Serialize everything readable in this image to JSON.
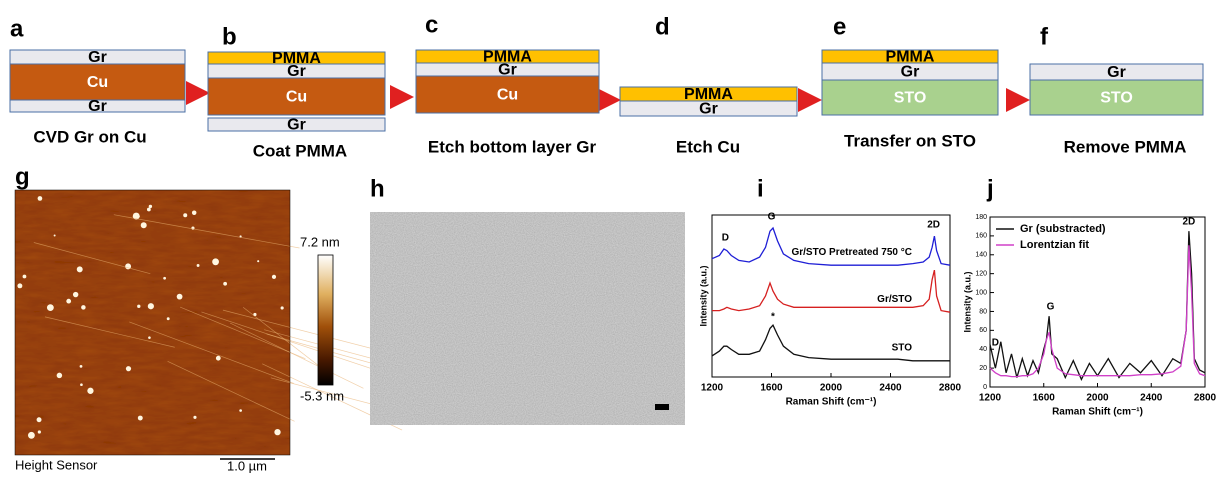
{
  "steps": [
    {
      "letter": "a",
      "caption": "CVD Gr on Cu",
      "layers": [
        {
          "label": "Gr",
          "color": "#e9e9ee"
        },
        {
          "label": "Cu",
          "color": "#c55a11"
        },
        {
          "label": "Gr",
          "color": "#e9e9ee"
        }
      ]
    },
    {
      "letter": "b",
      "caption": "Coat PMMA",
      "layers": [
        {
          "label": "PMMA",
          "color": "#ffc000"
        },
        {
          "label": "Gr",
          "color": "#e9e9ee"
        },
        {
          "label": "Cu",
          "color": "#c55a11"
        },
        {
          "label": "Gr",
          "color": "#e9e9ee"
        }
      ]
    },
    {
      "letter": "c",
      "caption": "Etch bottom layer Gr",
      "layers": [
        {
          "label": "PMMA",
          "color": "#ffc000"
        },
        {
          "label": "Gr",
          "color": "#e9e9ee"
        },
        {
          "label": "Cu",
          "color": "#c55a11"
        }
      ]
    },
    {
      "letter": "d",
      "caption": "Etch Cu",
      "layers": [
        {
          "label": "PMMA",
          "color": "#ffc000"
        },
        {
          "label": "Gr",
          "color": "#e9e9ee"
        }
      ]
    },
    {
      "letter": "e",
      "caption": "Transfer on STO",
      "layers": [
        {
          "label": "PMMA",
          "color": "#ffc000"
        },
        {
          "label": "Gr",
          "color": "#e9e9ee"
        },
        {
          "label": "STO",
          "color": "#a9d18e"
        }
      ]
    },
    {
      "letter": "f",
      "caption": "Remove PMMA",
      "layers": [
        {
          "label": "Gr",
          "color": "#e9e9ee"
        },
        {
          "label": "STO",
          "color": "#a9d18e"
        }
      ]
    }
  ],
  "panels": {
    "g": {
      "letter": "g",
      "colorbar_max": "7.2 nm",
      "colorbar_min": "-5.3 nm",
      "channel": "Height Sensor",
      "scale_bar": "1.0 µm"
    },
    "h": {
      "letter": "h"
    }
  },
  "chart_data": [
    {
      "type": "line",
      "letter": "i",
      "xlabel": "Raman Shift (cm⁻¹)",
      "ylabel": "Intensity (a.u.)",
      "x": [
        1200,
        1250,
        1280,
        1300,
        1330,
        1380,
        1450,
        1520,
        1560,
        1590,
        1610,
        1640,
        1680,
        1750,
        1850,
        2000,
        2150,
        2300,
        2450,
        2550,
        2620,
        2660,
        2680,
        2695,
        2710,
        2740,
        2800
      ],
      "series": [
        {
          "name": "Gr/STO Pretreated 750 °C",
          "color": "#1f1fd6",
          "values": [
            7.3,
            7.5,
            7.9,
            7.8,
            7.5,
            7.2,
            7.1,
            7.4,
            8.0,
            9.0,
            9.2,
            8.4,
            7.6,
            7.2,
            7.0,
            6.9,
            6.9,
            6.9,
            6.9,
            7.0,
            7.1,
            7.4,
            8.0,
            8.7,
            7.8,
            7.0,
            6.9
          ]
        },
        {
          "name": "Gr/STO",
          "color": "#d62020",
          "values": [
            4.1,
            4.1,
            4.2,
            4.3,
            4.2,
            4.1,
            4.2,
            4.4,
            5.0,
            5.8,
            5.3,
            4.8,
            4.5,
            4.3,
            4.3,
            4.3,
            4.3,
            4.3,
            4.3,
            4.3,
            4.4,
            4.8,
            6.0,
            6.6,
            5.0,
            4.1,
            4.0
          ]
        },
        {
          "name": "STO",
          "color": "#111111",
          "values": [
            1.3,
            1.6,
            1.9,
            1.9,
            1.7,
            1.4,
            1.4,
            1.6,
            2.3,
            3.0,
            3.2,
            2.6,
            1.9,
            1.4,
            1.2,
            1.1,
            1.1,
            1.1,
            1.1,
            1.0,
            1.0,
            1.0,
            1.0,
            1.0,
            1.0,
            1.0,
            1.0
          ]
        }
      ],
      "annotations": [
        {
          "text": "D",
          "x": 1290,
          "y": 8.6
        },
        {
          "text": "G",
          "x": 1600,
          "y": 9.9
        },
        {
          "text": "2D",
          "x": 2690,
          "y": 9.4
        },
        {
          "text": "*",
          "x": 1610,
          "y": 3.7
        }
      ],
      "xlim": [
        1200,
        2800
      ],
      "xticks": [
        1200,
        1600,
        2000,
        2400,
        2800
      ],
      "ylim": [
        0,
        10
      ],
      "legend": "none"
    },
    {
      "type": "line",
      "letter": "j",
      "xlabel": "Raman Shift (cm⁻¹)",
      "ylabel": "Intensity (a.u.)",
      "x": [
        1200,
        1240,
        1280,
        1320,
        1360,
        1400,
        1440,
        1480,
        1520,
        1560,
        1600,
        1620,
        1640,
        1660,
        1700,
        1760,
        1820,
        1880,
        1940,
        2000,
        2080,
        2160,
        2240,
        2320,
        2400,
        2480,
        2560,
        2620,
        2660,
        2680,
        2700,
        2720,
        2760,
        2800
      ],
      "series": [
        {
          "name": "Gr (substracted)",
          "color": "#111111",
          "values": [
            45,
            20,
            48,
            15,
            35,
            10,
            30,
            12,
            28,
            15,
            40,
            50,
            75,
            35,
            30,
            10,
            28,
            8,
            25,
            12,
            30,
            10,
            25,
            15,
            28,
            12,
            30,
            25,
            60,
            165,
            120,
            30,
            18,
            15
          ]
        },
        {
          "name": "Lorentzian fit",
          "color": "#d040c8",
          "values": [
            20,
            15,
            12,
            12,
            11,
            11,
            12,
            12,
            14,
            20,
            35,
            50,
            58,
            40,
            20,
            14,
            13,
            12,
            12,
            12,
            12,
            12,
            12,
            13,
            13,
            14,
            16,
            22,
            60,
            150,
            100,
            25,
            14,
            12
          ]
        }
      ],
      "annotations": [
        {
          "text": "D",
          "x": 1240,
          "y": 47
        },
        {
          "text": "G",
          "x": 1650,
          "y": 85
        },
        {
          "text": "2D",
          "x": 2680,
          "y": 175
        }
      ],
      "xlim": [
        1200,
        2800
      ],
      "xticks": [
        1200,
        1600,
        2000,
        2400,
        2800
      ],
      "ylim": [
        0,
        180
      ],
      "yticks": [
        0,
        20,
        40,
        60,
        80,
        100,
        120,
        140,
        160,
        180
      ],
      "legend": "upper left"
    }
  ]
}
